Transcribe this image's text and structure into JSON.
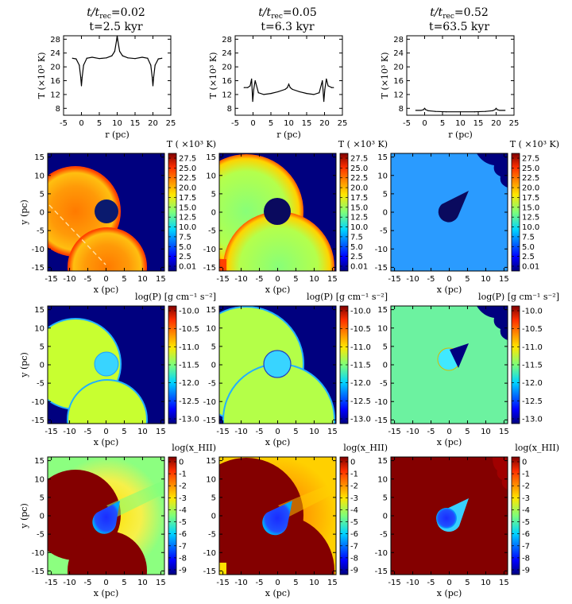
{
  "figure": {
    "columns": [
      {
        "title_ratio": "t/t",
        "title_sub": "rec",
        "title_val": "=0.02",
        "time": "t=2.5 kyr"
      },
      {
        "title_ratio": "t/t",
        "title_sub": "rec",
        "title_val": "=0.05",
        "time": "t=6.3 kyr"
      },
      {
        "title_ratio": "t/t",
        "title_sub": "rec",
        "title_val": "=0.52",
        "time": "t=63.5 kyr"
      }
    ],
    "colorbar_titles": {
      "temperature": "T ( ×10³ K)",
      "pressure": "log(P) [g cm⁻¹ s⁻²]",
      "ionization": "log(x_HII)"
    }
  },
  "chart_data": [
    {
      "type": "line",
      "panel": "temperature-profile-col1",
      "title": "t/t_rec=0.02, t=2.5 kyr",
      "xlabel": "r (pc)",
      "ylabel": "T (×10³ K)",
      "xlim": [
        -5,
        25
      ],
      "ylim": [
        6,
        29
      ],
      "xticks": [
        -5,
        0,
        5,
        10,
        15,
        20,
        25
      ],
      "yticks": [
        8,
        12,
        16,
        20,
        24,
        28
      ],
      "x": [
        -2.5,
        -1.5,
        -0.6,
        -0.2,
        0,
        0.2,
        0.6,
        1.5,
        3,
        5,
        7,
        8.5,
        9.3,
        9.8,
        10,
        10.2,
        10.7,
        11.5,
        13,
        15,
        17,
        18.5,
        19.4,
        19.8,
        20,
        20.2,
        20.6,
        21.5,
        22.5
      ],
      "series": [
        {
          "name": "T",
          "values": [
            22.5,
            22.3,
            20.5,
            17,
            14.5,
            17,
            20.5,
            22.5,
            22.8,
            22.4,
            22.6,
            23.2,
            24.5,
            27.5,
            29,
            27.5,
            24.5,
            23.2,
            22.6,
            22.4,
            22.8,
            22.5,
            20.5,
            17,
            14.5,
            17,
            20.5,
            22.3,
            22.5
          ]
        }
      ]
    },
    {
      "type": "line",
      "panel": "temperature-profile-col2",
      "title": "t/t_rec=0.05, t=6.3 kyr",
      "xlabel": "r (pc)",
      "ylabel": "T (×10³ K)",
      "xlim": [
        -5,
        25
      ],
      "ylim": [
        6,
        29
      ],
      "xticks": [
        -5,
        0,
        5,
        10,
        15,
        20,
        25
      ],
      "yticks": [
        8,
        12,
        16,
        20,
        24,
        28
      ],
      "x": [
        -2.5,
        -1.5,
        -0.8,
        -0.4,
        -0.1,
        0.2,
        0.6,
        1.5,
        3,
        5,
        7,
        9,
        9.6,
        10,
        10.4,
        11,
        13,
        15,
        17,
        18.5,
        19.4,
        19.8,
        20.1,
        20.5,
        21,
        22,
        22.5
      ],
      "series": [
        {
          "name": "T",
          "values": [
            14,
            14,
            14.5,
            16.5,
            10,
            13.5,
            16,
            12.5,
            12,
            12.3,
            12.8,
            13.5,
            14,
            15,
            14,
            13.5,
            12.8,
            12.3,
            12,
            12.5,
            16,
            10,
            13.5,
            16.5,
            14.5,
            14,
            14
          ]
        }
      ]
    },
    {
      "type": "line",
      "panel": "temperature-profile-col3",
      "title": "t/t_rec=0.52, t=63.5 kyr",
      "xlabel": "r (pc)",
      "ylabel": "T (×10³ K)",
      "xlim": [
        -5,
        25
      ],
      "ylim": [
        6,
        29
      ],
      "xticks": [
        -5,
        0,
        5,
        10,
        15,
        20,
        25
      ],
      "yticks": [
        8,
        12,
        16,
        20,
        24,
        28
      ],
      "x": [
        -2.5,
        -1,
        -0.3,
        0,
        0.3,
        1,
        3,
        6,
        10,
        14,
        17,
        19,
        19.7,
        20,
        20.3,
        21,
        22.5
      ],
      "series": [
        {
          "name": "T",
          "values": [
            7.4,
            7.4,
            7.6,
            8.0,
            7.6,
            7.3,
            7.1,
            7.0,
            7.0,
            7.0,
            7.1,
            7.3,
            7.6,
            8.0,
            7.6,
            7.4,
            7.4
          ]
        }
      ]
    },
    {
      "type": "heatmap",
      "panel": "temperature-maps",
      "colorbar_label": "T ( ×10³ K)",
      "colorbar_ticks": [
        "27.5",
        "25.0",
        "22.5",
        "20.0",
        "17.5",
        "15.0",
        "12.5",
        "10.0",
        "7.5",
        "5.0",
        "2.5",
        "0.01"
      ],
      "xlabel": "x (pc)",
      "ylabel": "y (pc)",
      "xlim": [
        -16,
        16
      ],
      "ylim": [
        -16,
        16
      ],
      "xticks": [
        -15,
        -10,
        -5,
        0,
        5,
        10,
        15
      ],
      "yticks": [
        15,
        10,
        5,
        0,
        -5,
        -10,
        -15
      ]
    },
    {
      "type": "heatmap",
      "panel": "pressure-maps",
      "colorbar_label": "log(P) [g cm⁻¹ s⁻²]",
      "colorbar_ticks": [
        "-10.0",
        "-10.5",
        "-11.0",
        "-11.5",
        "-12.0",
        "-12.5",
        "-13.0"
      ],
      "xlabel": "x (pc)",
      "ylabel": "y (pc)",
      "xlim": [
        -16,
        16
      ],
      "ylim": [
        -16,
        16
      ],
      "xticks": [
        -15,
        -10,
        -5,
        0,
        5,
        10,
        15
      ],
      "yticks": [
        15,
        10,
        5,
        0,
        -5,
        -10,
        -15
      ]
    },
    {
      "type": "heatmap",
      "panel": "ionization-maps",
      "colorbar_label": "log(x_HII)",
      "colorbar_ticks": [
        "0",
        "-1",
        "-2",
        "-3",
        "-4",
        "-5",
        "-6",
        "-7",
        "-8",
        "-9"
      ],
      "xlabel": "x (pc)",
      "ylabel": "y (pc)",
      "xlim": [
        -16,
        16
      ],
      "ylim": [
        -16,
        16
      ],
      "xticks": [
        -15,
        -10,
        -5,
        0,
        5,
        10,
        15
      ],
      "yticks": [
        15,
        10,
        5,
        0,
        -5,
        -10,
        -15
      ]
    }
  ]
}
